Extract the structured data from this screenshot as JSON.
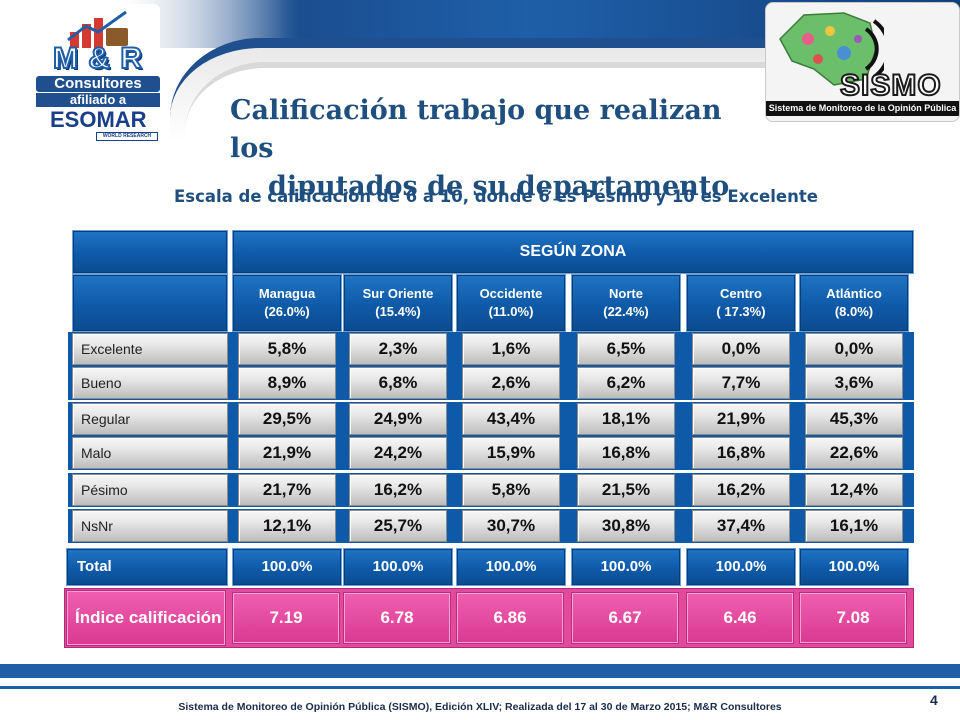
{
  "logos": {
    "mr_title": "M & R",
    "mr_sub": "Consultores",
    "mr_afiliado": "afiliado a",
    "mr_esomar": "ESOMAR",
    "mr_research": "WORLD RESEARCH",
    "sismo_word": "SISMO",
    "sismo_tag": "Sistema de Monitoreo de la Opinión Pública"
  },
  "title_line1": "Calificación trabajo que realizan los",
  "title_line2": "diputados de su departamento",
  "subtitle": "Escala de calificación de 6 a 10, donde 6 es Pésimo y 10 es Excelente",
  "colors": {
    "header_blue": "#0f5aa8",
    "silver": "#d4d4d4",
    "index_pink": "#e24a9c",
    "title_blue": "#1f4f7f"
  },
  "chart_data": {
    "type": "table",
    "group_header": "SEGÚN ZONA",
    "columns": [
      {
        "name": "Managua",
        "share": "(26.0%)"
      },
      {
        "name": "Sur Oriente",
        "share": "(15.4%)"
      },
      {
        "name": "Occidente",
        "share": "(11.0%)"
      },
      {
        "name": "Norte",
        "share": "(22.4%)"
      },
      {
        "name": "Centro",
        "share": "( 17.3%)"
      },
      {
        "name": "Atlántico",
        "share": "(8.0%)"
      }
    ],
    "rows": [
      {
        "label": "Excelente",
        "values": [
          "5,8%",
          "2,3%",
          "1,6%",
          "6,5%",
          "0,0%",
          "0,0%"
        ]
      },
      {
        "label": "Bueno",
        "values": [
          "8,9%",
          "6,8%",
          "2,6%",
          "6,2%",
          "7,7%",
          "3,6%"
        ]
      },
      {
        "label": "Regular",
        "values": [
          "29,5%",
          "24,9%",
          "43,4%",
          "18,1%",
          "21,9%",
          "45,3%"
        ]
      },
      {
        "label": "Malo",
        "values": [
          "21,9%",
          "24,2%",
          "15,9%",
          "16,8%",
          "16,8%",
          "22,6%"
        ]
      },
      {
        "label": "Pésimo",
        "values": [
          "21,7%",
          "16,2%",
          "5,8%",
          "21,5%",
          "16,2%",
          "12,4%"
        ]
      },
      {
        "label": "NsNr",
        "values": [
          "12,1%",
          "25,7%",
          "30,7%",
          "30,8%",
          "37,4%",
          "16,1%"
        ]
      }
    ],
    "total": {
      "label": "Total",
      "values": [
        "100.0%",
        "100.0%",
        "100.0%",
        "100.0%",
        "100.0%",
        "100.0%"
      ]
    },
    "index": {
      "label": "Índice calificación",
      "values": [
        "7.19",
        "6.78",
        "6.86",
        "6.67",
        "6.46",
        "7.08"
      ]
    }
  },
  "footer": "Sistema de Monitoreo de Opinión Pública (SISMO), Edición XLIV; Realizada del 17 al 30 de Marzo 2015; M&R Consultores",
  "page_number": "4"
}
